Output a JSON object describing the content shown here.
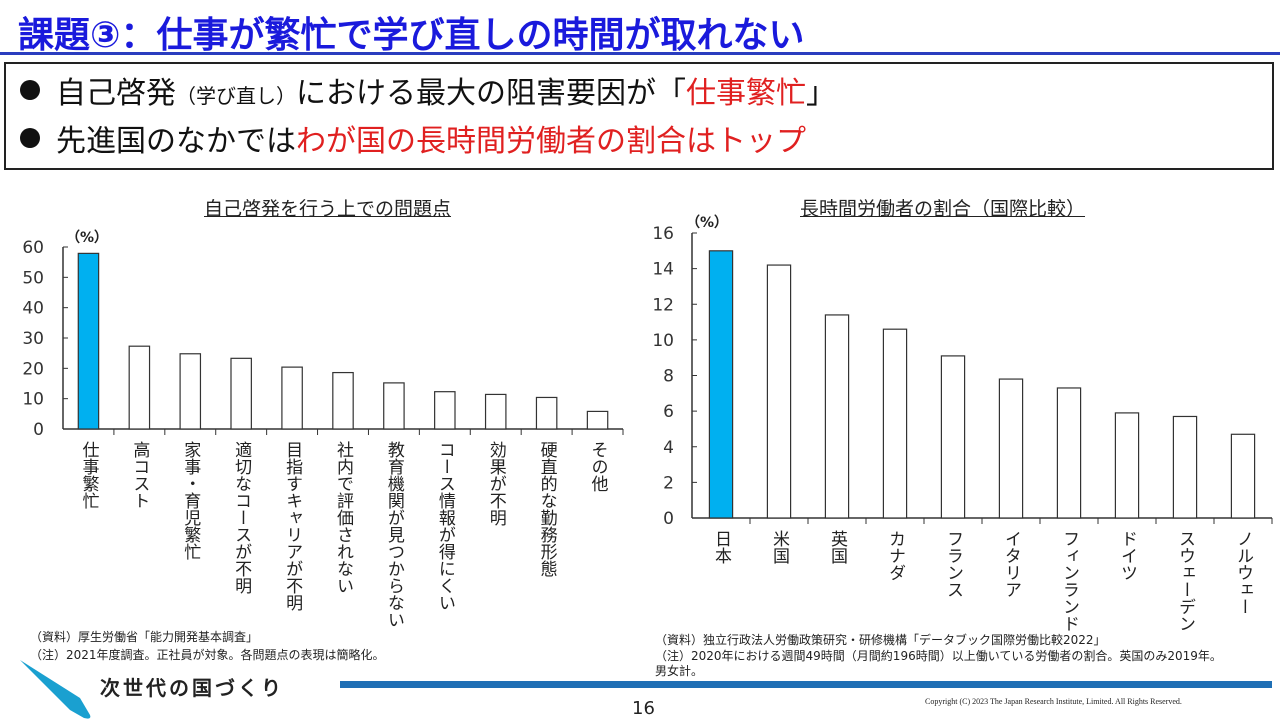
{
  "title": "課題③：仕事が繁忙で学び直しの時間が取れない",
  "bullets": [
    {
      "a": "自己啓発",
      "b": "（学び直し）",
      "c": "における最大の阻害要因が「",
      "d": "仕事繁忙",
      "e": "」"
    },
    {
      "a": "先進国のなかでは",
      "d": "わが国の長時間労働者の割合はトップ"
    }
  ],
  "colors": {
    "highlight": "#00b0f0",
    "title": "#1a1adc",
    "accent_red": "#e02020"
  },
  "chart_data": [
    {
      "type": "bar",
      "title": "自己啓発を行う上での問題点",
      "ylabel": "（%）",
      "ylim": [
        0,
        60
      ],
      "yticks": [
        0,
        10,
        20,
        30,
        40,
        50,
        60
      ],
      "categories": [
        "仕事繁忙",
        "高コスト",
        "家事・育児繁忙",
        "適切なコースが不明",
        "目指すキャリアが不明",
        "社内で評価されない",
        "教育機関が見つからない",
        "コース情報が得にくい",
        "効果が不明",
        "硬直的な勤務形態",
        "その他"
      ],
      "values": [
        57.9,
        27.3,
        24.8,
        23.3,
        20.4,
        18.6,
        15.2,
        12.3,
        11.4,
        10.4,
        5.8
      ],
      "highlight_index": 0
    },
    {
      "type": "bar",
      "title": "長時間労働者の割合（国際比較）",
      "ylabel": "（%）",
      "ylim": [
        0,
        16
      ],
      "yticks": [
        0,
        2,
        4,
        6,
        8,
        10,
        12,
        14,
        16
      ],
      "categories": [
        "日本",
        "米国",
        "英国",
        "カナダ",
        "フランス",
        "イタリア",
        "フィンランド",
        "ドイツ",
        "スウェーデン",
        "ノルウェー"
      ],
      "values": [
        15.0,
        14.2,
        11.4,
        10.6,
        9.1,
        7.8,
        7.3,
        5.9,
        5.7,
        4.7
      ],
      "highlight_index": 0
    }
  ],
  "notes": {
    "left_source": "（資料）厚生労働省「能力開発基本調査」",
    "left_note": "（注）2021年度調査。正社員が対象。各問題点の表現は簡略化。",
    "right_source": "（資料）独立行政法人労働政策研究・研修機構「データブック国際労働比較2022」",
    "right_note": "（注）2020年における週間49時間（月間約196時間）以上働いている労働者の割合。英国のみ2019年。",
    "right_note2": "男女計。"
  },
  "footer": {
    "brand": "次世代の国づくり",
    "page": "16",
    "copyright": "Copyright (C) 2023 The Japan Research Institute, Limited. All Rights Reserved."
  }
}
